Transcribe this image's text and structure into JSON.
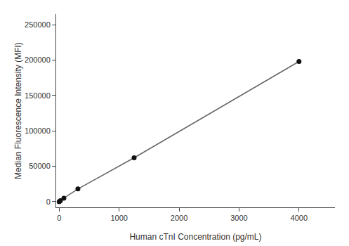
{
  "chart_data": {
    "type": "line",
    "x": [
      0,
      19.5,
      78,
      312,
      1250,
      4000
    ],
    "values": [
      0,
      1500,
      5000,
      18000,
      62000,
      198000
    ],
    "xlabel": "Human cTnI Concentration (pg/mL)",
    "ylabel": "Median Fluorescence Intensity (MFI)",
    "xlim": [
      -50,
      4600
    ],
    "ylim": [
      -8000,
      265000
    ],
    "xticks": [
      0,
      1000,
      2000,
      3000,
      4000
    ],
    "yticks": [
      0,
      50000,
      100000,
      150000,
      200000,
      250000
    ],
    "color": "#666666",
    "colors": [
      "#111111",
      "#111111",
      "#111111",
      "#111111",
      "#111111",
      "#111111"
    ],
    "marker": "circle",
    "grid": false
  }
}
